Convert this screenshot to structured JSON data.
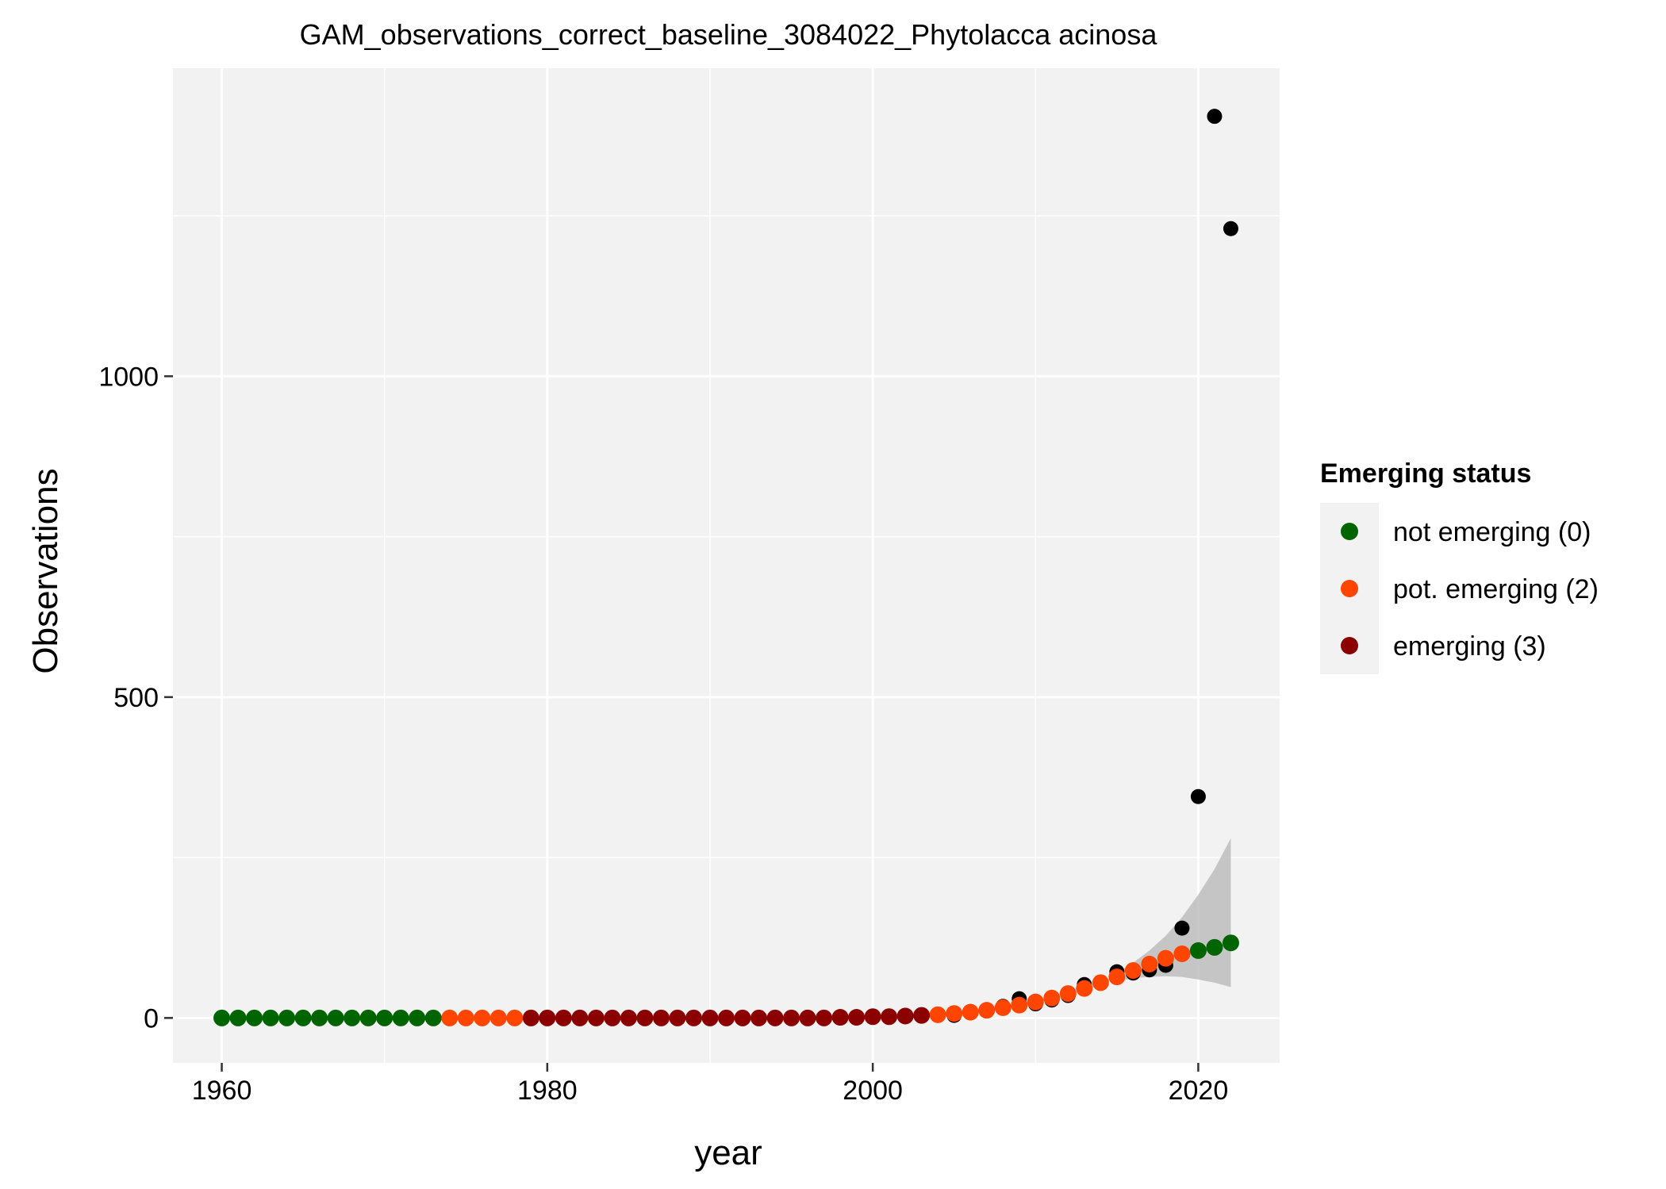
{
  "chart_data": {
    "type": "scatter",
    "title": "GAM_observations_correct_baseline_3084022_Phytolacca acinosa",
    "xlabel": "year",
    "ylabel": "Observations",
    "xlim": [
      1957,
      2025
    ],
    "ylim": [
      -70,
      1480
    ],
    "x_ticks": [
      1960,
      1980,
      2000,
      2020
    ],
    "y_ticks": [
      0,
      500,
      1000
    ],
    "grid": true,
    "background": "#f2f2f2",
    "observed": {
      "color": "#000000",
      "points": [
        [
          1960,
          0
        ],
        [
          1961,
          0
        ],
        [
          1962,
          0
        ],
        [
          1963,
          0
        ],
        [
          1964,
          0
        ],
        [
          1965,
          0
        ],
        [
          1966,
          0
        ],
        [
          1967,
          0
        ],
        [
          1968,
          0
        ],
        [
          1969,
          0
        ],
        [
          1970,
          0
        ],
        [
          1971,
          0
        ],
        [
          1972,
          0
        ],
        [
          1973,
          0
        ],
        [
          1974,
          0
        ],
        [
          1975,
          0
        ],
        [
          1976,
          0
        ],
        [
          1977,
          0
        ],
        [
          1978,
          0
        ],
        [
          1979,
          0
        ],
        [
          1980,
          0
        ],
        [
          1981,
          0
        ],
        [
          1982,
          0
        ],
        [
          1983,
          0
        ],
        [
          1984,
          0
        ],
        [
          1985,
          0
        ],
        [
          1986,
          0
        ],
        [
          1987,
          0
        ],
        [
          1988,
          0
        ],
        [
          1989,
          0
        ],
        [
          1990,
          0
        ],
        [
          1991,
          0
        ],
        [
          1992,
          0
        ],
        [
          1993,
          0
        ],
        [
          1994,
          0
        ],
        [
          1995,
          0
        ],
        [
          1996,
          0
        ],
        [
          1997,
          0
        ],
        [
          1998,
          0
        ],
        [
          1999,
          1
        ],
        [
          2000,
          2
        ],
        [
          2001,
          3
        ],
        [
          2002,
          4
        ],
        [
          2003,
          5
        ],
        [
          2004,
          6
        ],
        [
          2005,
          4
        ],
        [
          2006,
          10
        ],
        [
          2007,
          12
        ],
        [
          2008,
          18
        ],
        [
          2009,
          30
        ],
        [
          2010,
          22
        ],
        [
          2011,
          28
        ],
        [
          2012,
          35
        ],
        [
          2013,
          52
        ],
        [
          2014,
          55
        ],
        [
          2015,
          72
        ],
        [
          2016,
          70
        ],
        [
          2017,
          75
        ],
        [
          2018,
          82
        ],
        [
          2019,
          140
        ],
        [
          2020,
          345
        ],
        [
          2021,
          1405
        ],
        [
          2022,
          1230
        ]
      ]
    },
    "confidence_band": {
      "color": "#bdbdbd",
      "x": [
        2015,
        2016,
        2017,
        2018,
        2019,
        2020,
        2021,
        2022
      ],
      "lower": [
        56,
        62,
        64,
        65,
        64,
        60,
        55,
        48
      ],
      "upper": [
        70,
        86,
        105,
        128,
        157,
        192,
        232,
        280
      ]
    },
    "series": [
      {
        "name": "not emerging (0)",
        "color": "#006400",
        "points": [
          [
            1960,
            0
          ],
          [
            1961,
            0
          ],
          [
            1962,
            0
          ],
          [
            1963,
            0
          ],
          [
            1964,
            0
          ],
          [
            1965,
            0
          ],
          [
            1966,
            0
          ],
          [
            1967,
            0
          ],
          [
            1968,
            0
          ],
          [
            1969,
            0
          ],
          [
            1970,
            0
          ],
          [
            1971,
            0
          ],
          [
            1972,
            0
          ],
          [
            1973,
            0
          ],
          [
            2020,
            105
          ],
          [
            2021,
            110
          ],
          [
            2022,
            117
          ]
        ]
      },
      {
        "name": "pot. emerging (2)",
        "color": "#ff4500",
        "points": [
          [
            1974,
            0
          ],
          [
            1975,
            0
          ],
          [
            1976,
            0
          ],
          [
            1977,
            0
          ],
          [
            1978,
            0
          ],
          [
            2004,
            5
          ],
          [
            2005,
            7
          ],
          [
            2006,
            9
          ],
          [
            2007,
            12
          ],
          [
            2008,
            16
          ],
          [
            2009,
            20
          ],
          [
            2010,
            25
          ],
          [
            2011,
            31
          ],
          [
            2012,
            38
          ],
          [
            2013,
            46
          ],
          [
            2014,
            55
          ],
          [
            2015,
            64
          ],
          [
            2016,
            74
          ],
          [
            2017,
            84
          ],
          [
            2018,
            93
          ],
          [
            2019,
            100
          ]
        ]
      },
      {
        "name": "emerging (3)",
        "color": "#8b0000",
        "points": [
          [
            1979,
            0
          ],
          [
            1980,
            0
          ],
          [
            1981,
            0
          ],
          [
            1982,
            0
          ],
          [
            1983,
            0
          ],
          [
            1984,
            0
          ],
          [
            1985,
            0
          ],
          [
            1986,
            0
          ],
          [
            1987,
            0
          ],
          [
            1988,
            0
          ],
          [
            1989,
            0
          ],
          [
            1990,
            0
          ],
          [
            1991,
            0
          ],
          [
            1992,
            0
          ],
          [
            1993,
            0
          ],
          [
            1994,
            0
          ],
          [
            1995,
            0
          ],
          [
            1996,
            0
          ],
          [
            1997,
            0
          ],
          [
            1998,
            1
          ],
          [
            1999,
            1
          ],
          [
            2000,
            2
          ],
          [
            2001,
            2
          ],
          [
            2002,
            3
          ],
          [
            2003,
            4
          ]
        ]
      }
    ],
    "legend": {
      "title": "Emerging status",
      "position": "right",
      "items": [
        {
          "label": "not emerging (0)",
          "color": "#006400"
        },
        {
          "label": "pot. emerging (2)",
          "color": "#ff4500"
        },
        {
          "label": "emerging (3)",
          "color": "#8b0000"
        }
      ]
    }
  }
}
